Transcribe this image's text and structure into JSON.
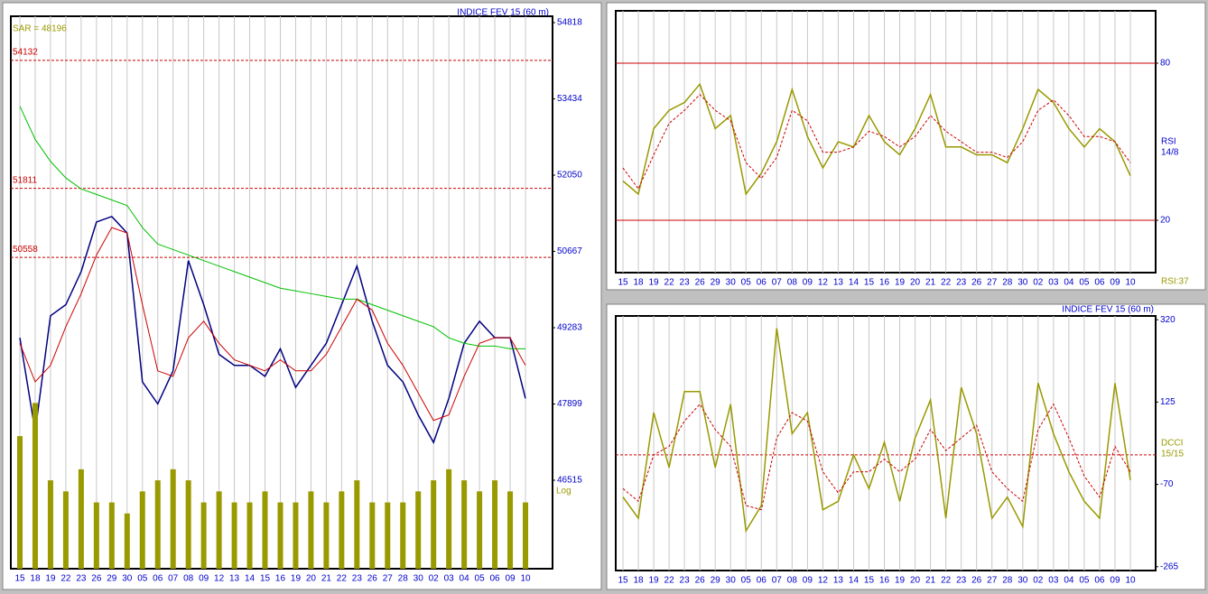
{
  "chart_data": [
    {
      "type": "line",
      "title": "INDICE FEV 15 (60 m)",
      "annotations": [
        "SAR = 48196",
        "Log"
      ],
      "categories": [
        "15",
        "18",
        "19",
        "22",
        "23",
        "26",
        "29",
        "30",
        "05",
        "06",
        "07",
        "08",
        "09",
        "12",
        "13",
        "14",
        "15",
        "16",
        "19",
        "20",
        "21",
        "22",
        "23",
        "26",
        "27",
        "28",
        "30",
        "02",
        "03",
        "04",
        "05",
        "06",
        "09",
        "10"
      ],
      "series": [
        {
          "color": "#000080",
          "style": "solid",
          "values": [
            49100,
            47400,
            49500,
            49700,
            50300,
            51200,
            51300,
            51000,
            48300,
            47900,
            48500,
            50500,
            49700,
            48800,
            48600,
            48600,
            48400,
            48900,
            48200,
            48600,
            49000,
            49700,
            50400,
            49400,
            48600,
            48300,
            47700,
            47200,
            48000,
            49000,
            49400,
            49100,
            49100,
            48000
          ]
        },
        {
          "color": "#00c000",
          "style": "solid",
          "values": [
            53300,
            52700,
            52300,
            52000,
            51800,
            51700,
            51600,
            51500,
            51100,
            50800,
            50700,
            50600,
            50500,
            50400,
            50300,
            50200,
            50100,
            50000,
            49950,
            49900,
            49850,
            49800,
            49800,
            49700,
            49600,
            49500,
            49400,
            49300,
            49100,
            49000,
            48950,
            48950,
            48900,
            48900
          ]
        },
        {
          "color": "#cc0000",
          "style": "solid",
          "values": [
            49000,
            48300,
            48600,
            49300,
            49900,
            50600,
            51100,
            51000,
            49700,
            48500,
            48400,
            49100,
            49400,
            49000,
            48700,
            48600,
            48500,
            48700,
            48500,
            48500,
            48800,
            49300,
            49800,
            49600,
            49000,
            48600,
            48100,
            47600,
            47700,
            48400,
            49000,
            49100,
            49100,
            48600
          ]
        },
        {
          "color": "#999900",
          "style": "bar",
          "axis": "y2",
          "values": [
            60,
            75,
            40,
            35,
            45,
            30,
            30,
            25,
            35,
            40,
            45,
            40,
            30,
            35,
            30,
            30,
            35,
            30,
            30,
            35,
            30,
            35,
            40,
            30,
            30,
            30,
            35,
            40,
            45,
            40,
            35,
            40,
            35,
            30
          ]
        }
      ],
      "ylim": [
        44910,
        54933
      ],
      "yticks": [
        46515,
        47899,
        49283,
        50667,
        52050,
        53434,
        54818
      ],
      "y2lim": [
        0,
        250
      ],
      "hlines": [
        54132,
        51811,
        50558
      ],
      "hline_labels": true,
      "grid": true
    },
    {
      "type": "line",
      "annotations": [
        "RSI",
        "14/8",
        "RSI:37"
      ],
      "categories": [
        "15",
        "18",
        "19",
        "22",
        "23",
        "26",
        "29",
        "30",
        "05",
        "06",
        "07",
        "08",
        "09",
        "12",
        "13",
        "14",
        "15",
        "16",
        "19",
        "20",
        "21",
        "22",
        "23",
        "26",
        "27",
        "28",
        "30",
        "02",
        "03",
        "04",
        "05",
        "06",
        "09",
        "10"
      ],
      "series": [
        {
          "color": "#999900",
          "style": "solid",
          "values": [
            35,
            30,
            55,
            62,
            65,
            72,
            55,
            60,
            30,
            38,
            50,
            70,
            52,
            40,
            50,
            48,
            60,
            50,
            45,
            55,
            68,
            48,
            48,
            45,
            45,
            42,
            55,
            70,
            65,
            55,
            48,
            55,
            50,
            37
          ]
        },
        {
          "color": "#cc0000",
          "style": "dashed",
          "values": [
            40,
            32,
            45,
            57,
            62,
            68,
            62,
            58,
            42,
            36,
            44,
            62,
            58,
            46,
            46,
            48,
            54,
            52,
            48,
            52,
            60,
            54,
            50,
            46,
            46,
            44,
            50,
            62,
            66,
            60,
            52,
            52,
            50,
            42
          ]
        }
      ],
      "ylim": [
        0,
        100
      ],
      "yticks": [
        20,
        80
      ],
      "hlines": [
        20,
        80
      ],
      "hline_labels": false,
      "grid": true
    },
    {
      "type": "line",
      "title": "INDICE FEV 15 (60 m)",
      "annotations": [
        "DCCI",
        "15/15"
      ],
      "categories": [
        "15",
        "18",
        "19",
        "22",
        "23",
        "26",
        "29",
        "30",
        "05",
        "06",
        "07",
        "08",
        "09",
        "12",
        "13",
        "14",
        "15",
        "16",
        "19",
        "20",
        "21",
        "22",
        "23",
        "26",
        "27",
        "28",
        "30",
        "02",
        "03",
        "04",
        "05",
        "06",
        "09",
        "10"
      ],
      "series": [
        {
          "color": "#999900",
          "style": "solid",
          "values": [
            -100,
            -150,
            100,
            -30,
            150,
            150,
            -30,
            120,
            -180,
            -120,
            300,
            50,
            100,
            -130,
            -110,
            0,
            -80,
            30,
            -110,
            40,
            130,
            -150,
            160,
            50,
            -150,
            -100,
            -170,
            170,
            50,
            -40,
            -110,
            -150,
            170,
            -60
          ]
        },
        {
          "color": "#cc0000",
          "style": "dashed",
          "values": [
            -80,
            -110,
            0,
            20,
            80,
            120,
            60,
            20,
            -120,
            -130,
            40,
            100,
            80,
            -40,
            -90,
            -40,
            -40,
            -10,
            -40,
            -10,
            60,
            10,
            40,
            70,
            -40,
            -80,
            -110,
            60,
            120,
            40,
            -50,
            -100,
            20,
            -40
          ]
        }
      ],
      "ylim": [
        -274,
        329
      ],
      "yticks": [
        320,
        125,
        -70,
        -265
      ],
      "hlines": [
        0
      ],
      "hline_labels": false,
      "grid": true
    }
  ]
}
